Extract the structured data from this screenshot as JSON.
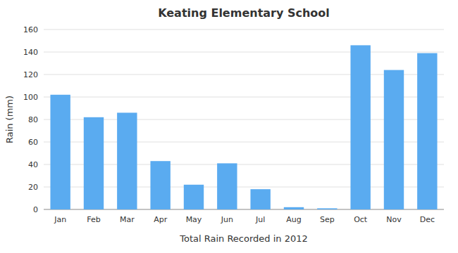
{
  "chart_data": {
    "type": "bar",
    "title": "Keating Elementary School",
    "xlabel": "Total Rain Recorded in 2012",
    "ylabel": "Rain (mm)",
    "categories": [
      "Jan",
      "Feb",
      "Mar",
      "Apr",
      "May",
      "Jun",
      "Jul",
      "Aug",
      "Sep",
      "Oct",
      "Nov",
      "Dec"
    ],
    "values": [
      102,
      82,
      86,
      43,
      22,
      41,
      18,
      2,
      1,
      146,
      124,
      139
    ],
    "color": "#5aabf0",
    "ylim": [
      0,
      160
    ],
    "yticks": [
      0,
      20,
      40,
      60,
      80,
      100,
      120,
      140,
      160
    ],
    "grid": true
  }
}
